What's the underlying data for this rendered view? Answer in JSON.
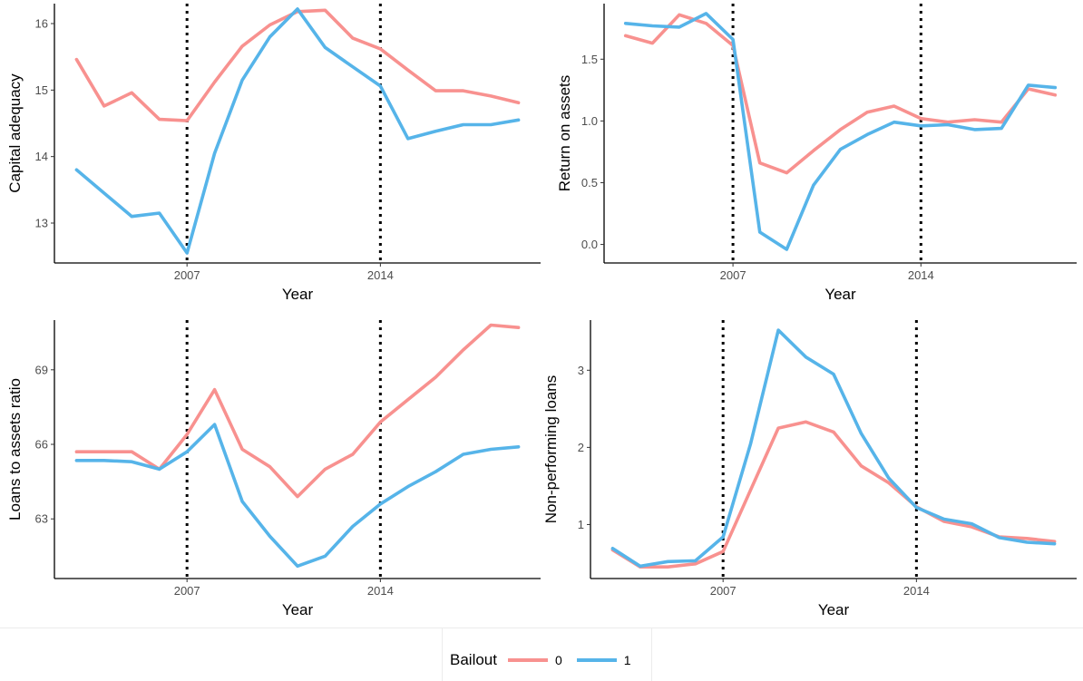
{
  "chart_data": [
    {
      "type": "line",
      "xlabel": "Year",
      "ylabel": "Capital adequacy",
      "x": [
        2003,
        2004,
        2005,
        2006,
        2007,
        2008,
        2009,
        2010,
        2011,
        2012,
        2013,
        2014,
        2015,
        2016,
        2017,
        2018,
        2019
      ],
      "xlim": [
        2002.2,
        2019.8
      ],
      "ylim": [
        12.4,
        16.3
      ],
      "x_ticks": [
        2007,
        2014
      ],
      "y_ticks": [
        13,
        14,
        15,
        16
      ],
      "vlines": [
        2007,
        2014
      ],
      "series": [
        {
          "name": "0",
          "values": [
            15.46,
            14.76,
            14.96,
            14.56,
            14.54,
            15.12,
            15.66,
            15.98,
            16.18,
            16.2,
            15.78,
            15.62,
            15.3,
            14.99,
            14.99,
            14.91,
            14.81
          ]
        },
        {
          "name": "1",
          "values": [
            13.8,
            13.45,
            13.1,
            13.15,
            12.55,
            14.05,
            15.15,
            15.8,
            16.22,
            15.64,
            15.35,
            15.06,
            14.27,
            14.38,
            14.48,
            14.48,
            14.55
          ]
        }
      ]
    },
    {
      "type": "line",
      "xlabel": "Year",
      "ylabel": "Return on assets",
      "x": [
        2003,
        2004,
        2005,
        2006,
        2007,
        2008,
        2009,
        2010,
        2011,
        2012,
        2013,
        2014,
        2015,
        2016,
        2017,
        2018,
        2019
      ],
      "xlim": [
        2002.2,
        2019.8
      ],
      "ylim": [
        -0.15,
        1.95
      ],
      "x_ticks": [
        2007,
        2014
      ],
      "y_ticks": [
        0.0,
        0.5,
        1.0,
        1.5
      ],
      "y_tick_labels": [
        "0.0",
        "0.5",
        "1.0",
        "1.5"
      ],
      "vlines": [
        2007,
        2014
      ],
      "series": [
        {
          "name": "0",
          "values": [
            1.69,
            1.63,
            1.86,
            1.79,
            1.61,
            0.66,
            0.58,
            0.76,
            0.93,
            1.07,
            1.12,
            1.02,
            0.99,
            1.01,
            0.99,
            1.26,
            1.21
          ]
        },
        {
          "name": "1",
          "values": [
            1.79,
            1.77,
            1.76,
            1.87,
            1.66,
            0.1,
            -0.04,
            0.48,
            0.77,
            0.89,
            0.99,
            0.96,
            0.97,
            0.93,
            0.94,
            1.29,
            1.27
          ]
        }
      ]
    },
    {
      "type": "line",
      "xlabel": "Year",
      "ylabel": "Loans to assets ratio",
      "x": [
        2003,
        2004,
        2005,
        2006,
        2007,
        2008,
        2009,
        2010,
        2011,
        2012,
        2013,
        2014,
        2015,
        2016,
        2017,
        2018,
        2019
      ],
      "xlim": [
        2002.2,
        2019.8
      ],
      "ylim": [
        60.6,
        71.0
      ],
      "x_ticks": [
        2007,
        2014
      ],
      "y_ticks": [
        63,
        66,
        69
      ],
      "vlines": [
        2007,
        2014
      ],
      "series": [
        {
          "name": "0",
          "values": [
            65.7,
            65.7,
            65.7,
            65.0,
            66.4,
            68.2,
            65.8,
            65.1,
            63.9,
            65.0,
            65.6,
            66.9,
            67.8,
            68.7,
            69.8,
            70.8,
            70.7
          ]
        },
        {
          "name": "1",
          "values": [
            65.35,
            65.35,
            65.3,
            65.0,
            65.7,
            66.8,
            63.7,
            62.3,
            61.1,
            61.5,
            62.7,
            63.6,
            64.3,
            64.9,
            65.6,
            65.8,
            65.9
          ]
        }
      ]
    },
    {
      "type": "line",
      "xlabel": "Year",
      "ylabel": "Non-performing loans",
      "x": [
        2003,
        2004,
        2005,
        2006,
        2007,
        2008,
        2009,
        2010,
        2011,
        2012,
        2013,
        2014,
        2015,
        2016,
        2017,
        2018,
        2019
      ],
      "xlim": [
        2002.2,
        2019.8
      ],
      "ylim": [
        0.3,
        3.65
      ],
      "x_ticks": [
        2007,
        2014
      ],
      "y_ticks": [
        1,
        2,
        3
      ],
      "vlines": [
        2007,
        2014
      ],
      "series": [
        {
          "name": "0",
          "values": [
            0.67,
            0.45,
            0.45,
            0.49,
            0.65,
            1.45,
            2.25,
            2.33,
            2.2,
            1.76,
            1.54,
            1.23,
            1.04,
            0.97,
            0.84,
            0.82,
            0.78
          ]
        },
        {
          "name": "1",
          "values": [
            0.69,
            0.46,
            0.52,
            0.53,
            0.84,
            2.05,
            3.52,
            3.17,
            2.95,
            2.18,
            1.6,
            1.22,
            1.07,
            1.01,
            0.83,
            0.77,
            0.75
          ]
        }
      ]
    }
  ],
  "legend": {
    "title": "Bailout",
    "items": [
      {
        "label": "0",
        "color": "#F8918F"
      },
      {
        "label": "1",
        "color": "#56B4E9"
      }
    ]
  },
  "colors": {
    "series_0": "#F8918F",
    "series_1": "#56B4E9",
    "axis": "#000000",
    "vline": "#000000"
  }
}
